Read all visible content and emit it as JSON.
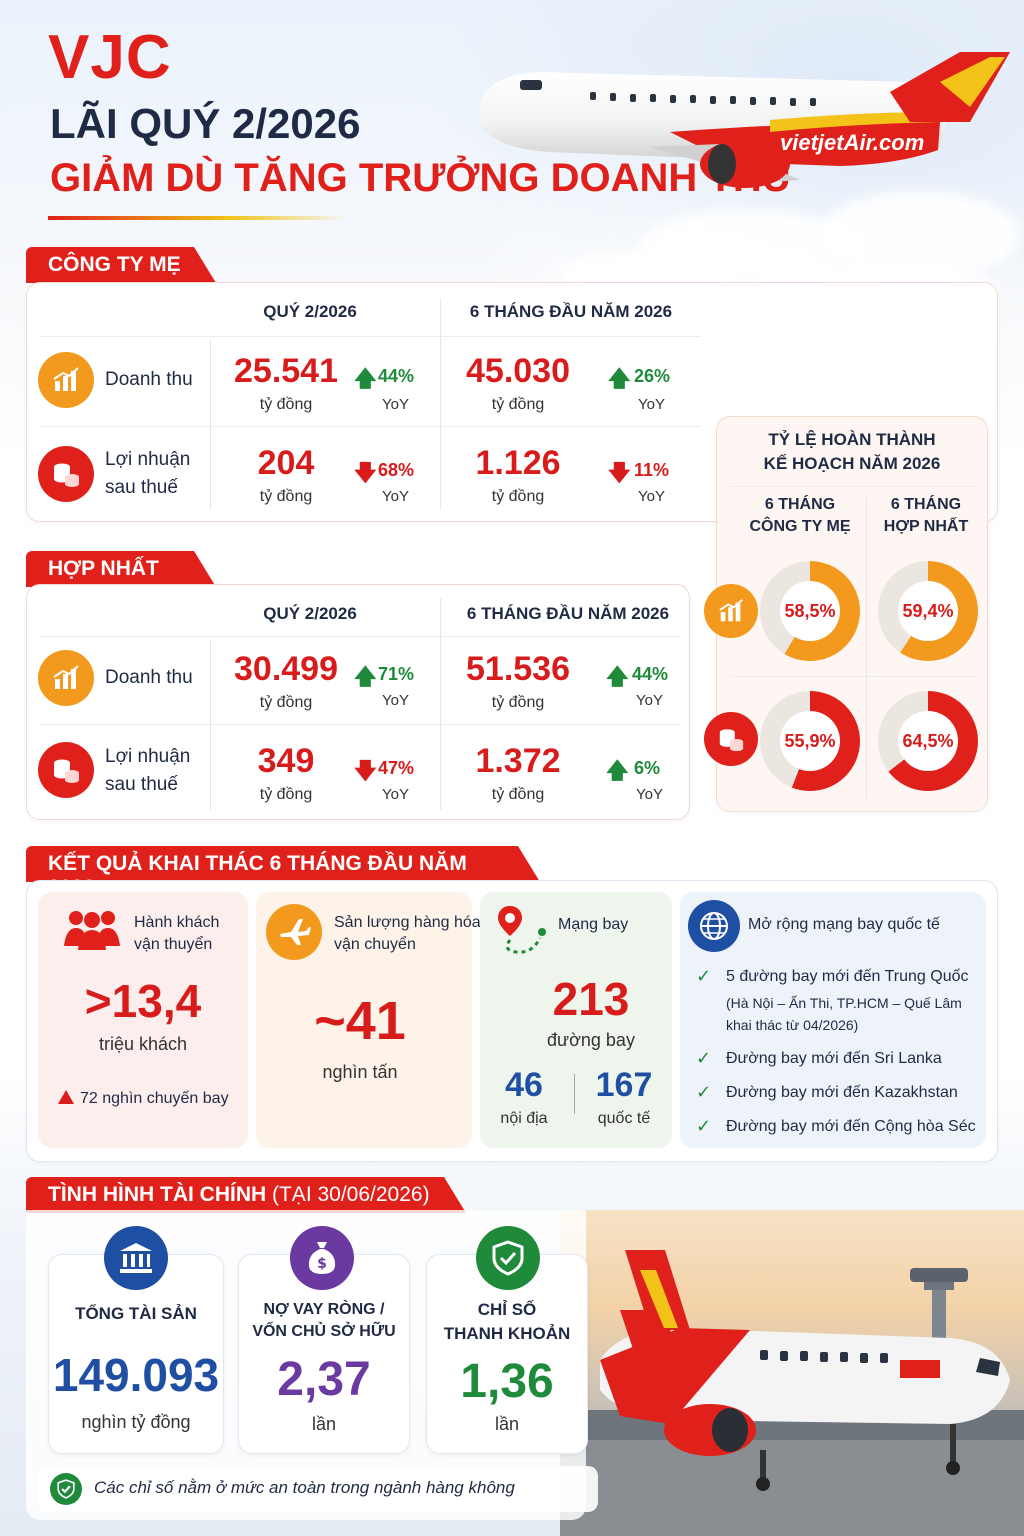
{
  "header": {
    "ticker": "VJC",
    "line2": "LÃI QUÝ 2/2026",
    "line3": "GIẢM DÙ TĂNG TRƯỞNG DOANH THU",
    "plane_livery": "vietjetAir.com"
  },
  "parent": {
    "tab": "CÔNG TY MẸ",
    "col1": "QUÝ 2/2026",
    "col2": "6 THÁNG ĐẦU NĂM 2026",
    "rows": [
      {
        "label1": "Doanh thu",
        "label2": "",
        "q_value": "25.541",
        "q_unit": "tỷ đồng",
        "q_pct": "44%",
        "q_dir": "up",
        "q_yoy": "YoY",
        "h_value": "45.030",
        "h_unit": "tỷ đồng",
        "h_pct": "26%",
        "h_dir": "up",
        "h_yoy": "YoY"
      },
      {
        "label1": "Lợi nhuận",
        "label2": "sau thuế",
        "q_value": "204",
        "q_unit": "tỷ đồng",
        "q_pct": "68%",
        "q_dir": "down",
        "q_yoy": "YoY",
        "h_value": "1.126",
        "h_unit": "tỷ đồng",
        "h_pct": "11%",
        "h_dir": "down",
        "h_yoy": "YoY"
      }
    ]
  },
  "consolidated": {
    "tab": "HỢP NHẤT",
    "col1": "QUÝ 2/2026",
    "col2": "6 THÁNG ĐẦU NĂM 2026",
    "rows": [
      {
        "label1": "Doanh thu",
        "label2": "",
        "q_value": "30.499",
        "q_unit": "tỷ đồng",
        "q_pct": "71%",
        "q_dir": "up",
        "q_yoy": "YoY",
        "h_value": "51.536",
        "h_unit": "tỷ đồng",
        "h_pct": "44%",
        "h_dir": "up",
        "h_yoy": "YoY"
      },
      {
        "label1": "Lợi nhuận",
        "label2": "sau thuế",
        "q_value": "349",
        "q_unit": "tỷ đồng",
        "q_pct": "47%",
        "q_dir": "down",
        "q_yoy": "YoY",
        "h_value": "1.372",
        "h_unit": "tỷ đồng",
        "h_pct": "6%",
        "h_dir": "up",
        "h_yoy": "YoY"
      }
    ]
  },
  "plan": {
    "title1": "TỶ LỆ HOÀN THÀNH",
    "title2": "KẾ HOẠCH NĂM 2026",
    "col1a": "6 THÁNG",
    "col1b": "CÔNG TY MẸ",
    "col2a": "6 THÁNG",
    "col2b": "HỢP NHẤT",
    "revenue": [
      {
        "label": "58,5%",
        "value": 58.5
      },
      {
        "label": "59,4%",
        "value": 59.4
      }
    ],
    "profit": [
      {
        "label": "55,9%",
        "value": 55.9
      },
      {
        "label": "64,5%",
        "value": 64.5
      }
    ],
    "colors": {
      "revenue": "#f39a1e",
      "profit": "#e0201b",
      "track": "#ece6e0"
    }
  },
  "ops": {
    "tab": "KẾT QUẢ KHAI THÁC 6 THÁNG ĐẦU NĂM 2026",
    "passengers": {
      "label1": "Hành khách",
      "label2": "vận thuyển",
      "value": ">13,4",
      "unit": "triệu khách",
      "note": "72 nghìn chuyến bay"
    },
    "cargo": {
      "label1": "Sản lượng hàng hóa",
      "label2": "vận chuyển",
      "value": "~41",
      "unit": "nghìn tấn"
    },
    "network": {
      "label": "Mạng bay",
      "value": "213",
      "unit": "đường bay",
      "domestic": "46",
      "domestic_label": "nội địa",
      "intl": "167",
      "intl_label": "quốc tế"
    },
    "expansion": {
      "title": "Mở rộng mạng bay quốc tế",
      "item1": "5 đường bay mới đến Trung Quốc",
      "item1_sub1": "(Hà Nội – Ấn Thi, TP.HCM – Quế Lâm",
      "item1_sub2": "khai thác từ 04/2026)",
      "item2": "Đường bay mới đến Sri Lanka",
      "item3": "Đường bay mới đến Kazakhstan",
      "item4": "Đường bay mới đến Cộng hòa Séc"
    }
  },
  "finance": {
    "tab_bold": "TÌNH HÌNH TÀI CHÍNH",
    "tab_light": " (TẠI 30/06/2026)",
    "assets": {
      "label1": "TỔNG TÀI SẢN",
      "value": "149.093",
      "unit": "nghìn tỷ đồng",
      "color": "#1f4fa3"
    },
    "leverage": {
      "label1": "NỢ VAY RÒNG /",
      "label2": "VỐN CHỦ SỞ HỮU",
      "value": "2,37",
      "unit": "lần",
      "color": "#6b3aa0"
    },
    "liquidity": {
      "label1": "CHỈ SỐ",
      "label2": "THANH KHOẢN",
      "value": "1,36",
      "unit": "lần",
      "color": "#1e8a3a"
    },
    "footnote": "Các chỉ số nằm ở mức an toàn trong ngành hàng không"
  }
}
